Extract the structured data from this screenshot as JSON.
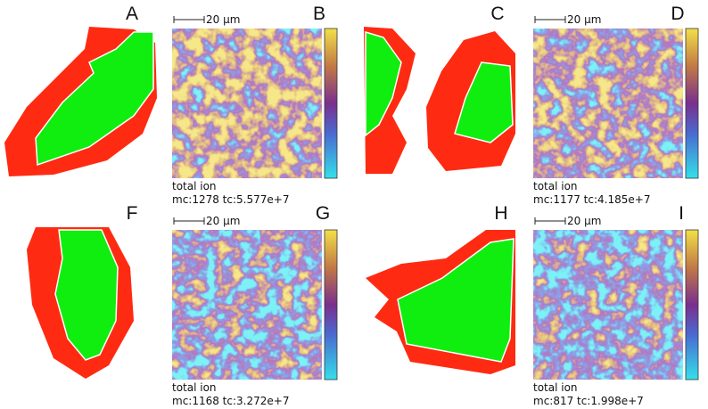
{
  "panels": [
    {
      "label": "A"
    },
    {
      "label": "B",
      "scale_bar": "20 µm",
      "caption": [
        "total ion",
        "mc:1278 tc:5.577e+7"
      ]
    },
    {
      "label": "C"
    },
    {
      "label": "D",
      "scale_bar": "20 µm",
      "caption": [
        "total ion",
        "mc:1177 tc:4.185e+7"
      ]
    },
    {
      "label": "F"
    },
    {
      "label": "G",
      "scale_bar": "20 µm",
      "caption": [
        "total ion",
        "mc:1168 tc:3.272e+7"
      ]
    },
    {
      "label": "H"
    },
    {
      "label": "I",
      "scale_bar": "20 µm",
      "caption": [
        "total ion",
        "mc:817 tc:1.998e+7"
      ]
    }
  ]
}
